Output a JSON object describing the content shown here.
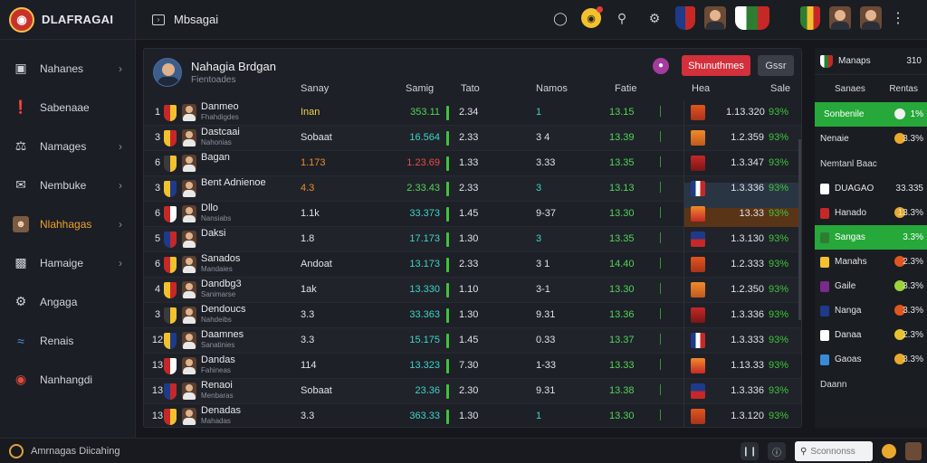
{
  "app": {
    "brand_name": "DLAFRAGAI",
    "page_title": "Mbsagai"
  },
  "sidebar": {
    "items": [
      {
        "label": "Nahanes",
        "icon": "square-icon",
        "has_chevron": true
      },
      {
        "label": "Sabenaae",
        "icon": "figure-icon",
        "has_chevron": false
      },
      {
        "label": "Namages",
        "icon": "players-icon",
        "has_chevron": true
      },
      {
        "label": "Nembuke",
        "icon": "mail-icon",
        "has_chevron": true
      },
      {
        "label": "Nlahhagas",
        "icon": "avatar-icon",
        "has_chevron": true,
        "active": true
      },
      {
        "label": "Hamaige",
        "icon": "image-icon",
        "has_chevron": true
      },
      {
        "label": "Angaga",
        "icon": "gear-icon",
        "has_chevron": false
      },
      {
        "label": "Renais",
        "icon": "wave-icon",
        "has_chevron": false
      },
      {
        "label": "Nanhangdi",
        "icon": "flag-icon",
        "has_chevron": false
      }
    ]
  },
  "main": {
    "header": {
      "title": "Nahagia Brdgan",
      "subtitle": "Fientoades"
    },
    "buttons": {
      "primary": "Shunuthmes",
      "secondary": "Gssr"
    },
    "columns": {
      "c1": "Sanay",
      "c2": "Samig",
      "c3": "Tato",
      "c4": "Namos",
      "c5": "Fatie",
      "c6": "Hea",
      "c7": "Sale"
    },
    "rows": [
      {
        "rank": "1",
        "name": "Danmeo",
        "sub": "Fhahdigdes",
        "c1": "Inan",
        "c1c": "yellow",
        "c2": "353.11",
        "c2c": "green",
        "c3": "2.34",
        "c4": "1",
        "c4c": "teal",
        "c5": "13.15",
        "c6": "1.13.320",
        "c7": "93%"
      },
      {
        "rank": "3",
        "name": "Dastcaai",
        "sub": "Nahonias",
        "c1": "Sobaat",
        "c1c": "",
        "c2": "16.564",
        "c2c": "teal",
        "c3": "2.33",
        "c4": "3 4",
        "c4c": "",
        "c5": "13.39",
        "c6": "1.2.359",
        "c7": "93%"
      },
      {
        "rank": "6",
        "name": "Bagan",
        "sub": "",
        "c1": "1.173",
        "c1c": "orange",
        "c2": "1.23.69",
        "c2c": "red",
        "c3": "1.33",
        "c4": "3.33",
        "c4c": "",
        "c5": "13.35",
        "c6": "1.3.347",
        "c7": "93%"
      },
      {
        "rank": "3",
        "name": "Bent Adnienoe",
        "sub": "",
        "c1": "4.3",
        "c1c": "orange",
        "c2": "2.33.43",
        "c2c": "green",
        "c3": "2.33",
        "c4": "3",
        "c4c": "teal",
        "c5": "13.13",
        "c6": "1.3.336",
        "c7": "93%"
      },
      {
        "rank": "6",
        "name": "Dllo",
        "sub": "Nansiabs",
        "c1": "1.1k",
        "c1c": "",
        "c2": "33.373",
        "c2c": "teal",
        "c3": "1.45",
        "c4": "9-37",
        "c4c": "",
        "c5": "13.30",
        "c6": "13.33",
        "c7": "93%"
      },
      {
        "rank": "5",
        "name": "Daksi",
        "sub": "",
        "c1": "1.8",
        "c1c": "",
        "c2": "17.173",
        "c2c": "teal",
        "c3": "1.30",
        "c4": "3",
        "c4c": "teal",
        "c5": "13.35",
        "c6": "1.3.130",
        "c7": "93%"
      },
      {
        "rank": "6",
        "name": "Sanados",
        "sub": "Mandaies",
        "c1": "Andoat",
        "c1c": "",
        "c2": "13.173",
        "c2c": "teal",
        "c3": "2.33",
        "c4": "3 1",
        "c4c": "",
        "c5": "14.40",
        "c6": "1.2.333",
        "c7": "93%"
      },
      {
        "rank": "4",
        "name": "Dandbg3",
        "sub": "Sanimarse",
        "c1": "1ak",
        "c1c": "",
        "c2": "13.330",
        "c2c": "teal",
        "c3": "1.10",
        "c4": "3-1",
        "c4c": "",
        "c5": "13.30",
        "c6": "1.2.350",
        "c7": "93%"
      },
      {
        "rank": "3",
        "name": "Dendoucs",
        "sub": "Nahdeibs",
        "c1": "3.3",
        "c1c": "",
        "c2": "33.363",
        "c2c": "teal",
        "c3": "1.30",
        "c4": "9.31",
        "c4c": "",
        "c5": "13.36",
        "c6": "1.3.336",
        "c7": "93%"
      },
      {
        "rank": "12",
        "name": "Daamnes",
        "sub": "Sanatinies",
        "c1": "3.3",
        "c1c": "",
        "c2": "15.175",
        "c2c": "teal",
        "c3": "1.45",
        "c4": "0.33",
        "c4c": "",
        "c5": "13.37",
        "c6": "1.3.333",
        "c7": "93%"
      },
      {
        "rank": "13",
        "name": "Dandas",
        "sub": "Fahineas",
        "c1": "114",
        "c1c": "",
        "c2": "13.323",
        "c2c": "teal",
        "c3": "7.30",
        "c4": "1-33",
        "c4c": "",
        "c5": "13.33",
        "c6": "1.13.33",
        "c7": "93%"
      },
      {
        "rank": "13",
        "name": "Renaoi",
        "sub": "Menbaras",
        "c1": "Sobaat",
        "c1c": "",
        "c2": "23.36",
        "c2c": "teal",
        "c3": "2.30",
        "c4": "9.31",
        "c4c": "",
        "c5": "13.38",
        "c6": "1.3.336",
        "c7": "93%"
      },
      {
        "rank": "13",
        "name": "Denadas",
        "sub": "Mahadas",
        "c1": "3.3",
        "c1c": "",
        "c2": "363.33",
        "c2c": "teal",
        "c3": "1.30",
        "c4": "1",
        "c4c": "teal",
        "c5": "13.30",
        "c6": "1.3.120",
        "c7": "93%"
      }
    ]
  },
  "right_panel": {
    "header": {
      "label": "Manaps",
      "value": "310"
    },
    "sub": {
      "left": "Sanaes",
      "right": "Rentas"
    },
    "rows_top": [
      {
        "label": "Sonbenile",
        "value": "1%"
      },
      {
        "label": "Nenaie",
        "value": "3.3%"
      }
    ],
    "section": "Nemtanl Baac",
    "rows": [
      {
        "label": "DUAGAO",
        "value": "33.335"
      },
      {
        "label": "Hanado",
        "value": "13.3%"
      },
      {
        "label": "Sangas",
        "value": "3.3%"
      },
      {
        "label": "Manahs",
        "value": "2.3%"
      },
      {
        "label": "Gaile",
        "value": "3.3%"
      },
      {
        "label": "Nanga",
        "value": "3.3%"
      },
      {
        "label": "Danaa",
        "value": "2.3%"
      },
      {
        "label": "Gaoas",
        "value": "3.3%"
      }
    ],
    "footer": "Daann"
  },
  "footer": {
    "status": "Amrnagas Diicahing",
    "search_placeholder": "Sconnonss"
  },
  "colors": {
    "accent_red": "#d3303b",
    "positive_green": "#27a83a",
    "active_orange": "#f0a030"
  }
}
